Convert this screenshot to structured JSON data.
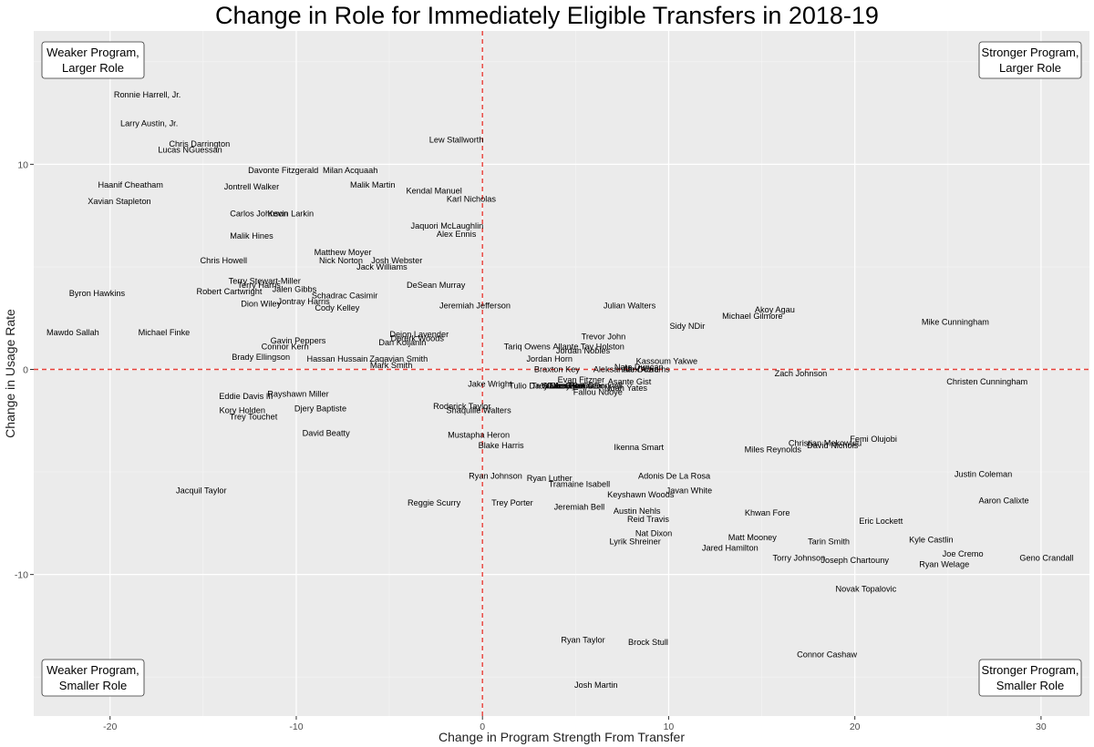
{
  "chart_data": {
    "type": "scatter",
    "title": "Change in Role for Immediately Eligible Transfers in 2018-19",
    "xlabel": "Change in Program Strength From Transfer",
    "ylabel": "Change in Usage Rate",
    "xlim": [
      -24.1,
      32.6
    ],
    "ylim": [
      -16.9,
      16.5
    ],
    "xticks": [
      -20,
      -10,
      0,
      10,
      20,
      30
    ],
    "yticks": [
      -10,
      0,
      10
    ],
    "grid": true,
    "reference_lines": {
      "x": 0,
      "y": 0,
      "style": "dashed",
      "color": "#e8403a"
    },
    "quadrant_labels": {
      "top_left": [
        "Weaker Program,",
        "Larger Role"
      ],
      "top_right": [
        "Stronger Program,",
        "Larger Role"
      ],
      "bottom_left": [
        "Weaker Program,",
        "Smaller Role"
      ],
      "bottom_right": [
        "Stronger Program,",
        "Smaller Role"
      ]
    },
    "points": [
      {
        "label": "Ronnie Harrell, Jr.",
        "x": -18.0,
        "y": 13.4
      },
      {
        "label": "Larry Austin, Jr.",
        "x": -17.9,
        "y": 12.0
      },
      {
        "label": "Chris Darrington",
        "x": -15.2,
        "y": 11.0
      },
      {
        "label": "Lucas NGuessan",
        "x": -15.7,
        "y": 10.7
      },
      {
        "label": "Lew Stallworth",
        "x": -1.4,
        "y": 11.2
      },
      {
        "label": "Davonte Fitzgerald",
        "x": -10.7,
        "y": 9.7
      },
      {
        "label": "Milan Acquaah",
        "x": -7.1,
        "y": 9.7
      },
      {
        "label": "Haanif Cheatham",
        "x": -18.9,
        "y": 9.0
      },
      {
        "label": "Jontrell Walker",
        "x": -12.4,
        "y": 8.9
      },
      {
        "label": "Malik Martin",
        "x": -5.9,
        "y": 9.0
      },
      {
        "label": "Kendal Manuel",
        "x": -2.6,
        "y": 8.7
      },
      {
        "label": "Karl Nicholas",
        "x": -0.6,
        "y": 8.3
      },
      {
        "label": "Xavian Stapleton",
        "x": -19.5,
        "y": 8.2
      },
      {
        "label": "Carlos Johnson",
        "x": -12.0,
        "y": 7.6
      },
      {
        "label": "Kevin Larkin",
        "x": -10.3,
        "y": 7.6
      },
      {
        "label": "Jaquori McLaughlin",
        "x": -1.9,
        "y": 7.0
      },
      {
        "label": "Alex Ennis",
        "x": -1.4,
        "y": 6.6
      },
      {
        "label": "Malik Hines",
        "x": -12.4,
        "y": 6.5
      },
      {
        "label": "Matthew Moyer",
        "x": -7.5,
        "y": 5.7
      },
      {
        "label": "Nick Norton",
        "x": -7.6,
        "y": 5.3
      },
      {
        "label": "Josh Webster",
        "x": -4.6,
        "y": 5.3
      },
      {
        "label": "Jack Williams",
        "x": -5.4,
        "y": 5.0
      },
      {
        "label": "Chris Howell",
        "x": -13.9,
        "y": 5.3
      },
      {
        "label": "DeSean Murray",
        "x": -2.5,
        "y": 4.1
      },
      {
        "label": "Terry Stewart-Miller",
        "x": -11.7,
        "y": 4.3
      },
      {
        "label": "Terry Harris",
        "x": -12.0,
        "y": 4.1
      },
      {
        "label": "Jalen Gibbs",
        "x": -10.1,
        "y": 3.9
      },
      {
        "label": "Robert Cartwright",
        "x": -13.6,
        "y": 3.8
      },
      {
        "label": "Byron Hawkins",
        "x": -20.7,
        "y": 3.7
      },
      {
        "label": "Schadrac Casimir",
        "x": -7.4,
        "y": 3.6
      },
      {
        "label": "Dion Wiley",
        "x": -11.9,
        "y": 3.2
      },
      {
        "label": "Jontray Harris",
        "x": -9.6,
        "y": 3.3
      },
      {
        "label": "Cody Kelley",
        "x": -7.8,
        "y": 3.0
      },
      {
        "label": "Jeremiah Jefferson",
        "x": -0.4,
        "y": 3.1
      },
      {
        "label": "Julian Walters",
        "x": 7.9,
        "y": 3.1
      },
      {
        "label": "Akoy Agau",
        "x": 15.7,
        "y": 2.9
      },
      {
        "label": "Michael Gilmore",
        "x": 14.5,
        "y": 2.6
      },
      {
        "label": "Mike Cunningham",
        "x": 25.4,
        "y": 2.3
      },
      {
        "label": "Sidy NDir",
        "x": 11.0,
        "y": 2.1
      },
      {
        "label": "Mawdo Sallah",
        "x": -22.0,
        "y": 1.8
      },
      {
        "label": "Michael Finke",
        "x": -17.1,
        "y": 1.8
      },
      {
        "label": "Deion Lavender",
        "x": -3.4,
        "y": 1.7
      },
      {
        "label": "Trevor John",
        "x": 6.5,
        "y": 1.6
      },
      {
        "label": "Dererk Woods",
        "x": -3.5,
        "y": 1.5
      },
      {
        "label": "Gavin Peppers",
        "x": -9.9,
        "y": 1.4
      },
      {
        "label": "Dan Koljanin",
        "x": -4.3,
        "y": 1.3
      },
      {
        "label": "Connor Kern",
        "x": -10.6,
        "y": 1.1
      },
      {
        "label": "Tariq Owens",
        "x": 2.4,
        "y": 1.1
      },
      {
        "label": "Allante Tay Holston",
        "x": 5.7,
        "y": 1.1
      },
      {
        "label": "Jordan Nobles",
        "x": 5.4,
        "y": 0.9
      },
      {
        "label": "Brady Ellingson",
        "x": -11.9,
        "y": 0.6
      },
      {
        "label": "Hassan Hussain",
        "x": -7.8,
        "y": 0.5
      },
      {
        "label": "Zaqavian Smith",
        "x": -4.5,
        "y": 0.5
      },
      {
        "label": "Jordan Horn",
        "x": 3.6,
        "y": 0.5
      },
      {
        "label": "Kassoum Yakwe",
        "x": 9.9,
        "y": 0.4
      },
      {
        "label": "Mark Smith",
        "x": -4.9,
        "y": 0.2
      },
      {
        "label": "Braxton Key",
        "x": 4.0,
        "y": -0.0
      },
      {
        "label": "Aleksandar Dozic",
        "x": 7.7,
        "y": 0.0
      },
      {
        "label": "Nate Duncan",
        "x": 8.4,
        "y": 0.1
      },
      {
        "label": "Alex Abrams",
        "x": 8.8,
        "y": 0.0
      },
      {
        "label": "Zach Johnson",
        "x": 17.1,
        "y": -0.2
      },
      {
        "label": "Christen Cunningham",
        "x": 27.1,
        "y": -0.6
      },
      {
        "label": "Evan Fitzner",
        "x": 5.3,
        "y": -0.5
      },
      {
        "label": "Asante Gist",
        "x": 7.9,
        "y": -0.6
      },
      {
        "label": "Jake Wright",
        "x": 0.4,
        "y": -0.7
      },
      {
        "label": "Tulio Da Silva",
        "x": 2.8,
        "y": -0.8
      },
      {
        "label": "Trey Dosunmu",
        "x": 4.1,
        "y": -0.8
      },
      {
        "label": "Walker Bell",
        "x": 4.3,
        "y": -0.8
      },
      {
        "label": "Casey Benson",
        "x": 4.9,
        "y": -0.8
      },
      {
        "label": "Jordan Oliver",
        "x": 5.2,
        "y": -0.8
      },
      {
        "label": "Ryan ODonnell",
        "x": 6.0,
        "y": -0.8
      },
      {
        "label": "Noah Yates",
        "x": 7.7,
        "y": -0.9
      },
      {
        "label": "Fallou Ndoye",
        "x": 6.2,
        "y": -1.1
      },
      {
        "label": "Eddie Davis III",
        "x": -12.7,
        "y": -1.3
      },
      {
        "label": "Rayshawn Miller",
        "x": -9.9,
        "y": -1.2
      },
      {
        "label": "Roderick Taylor",
        "x": -1.1,
        "y": -1.8
      },
      {
        "label": "Shaquille Walters",
        "x": -0.2,
        "y": -2.0
      },
      {
        "label": "Kory Holden",
        "x": -12.9,
        "y": -2.0
      },
      {
        "label": "Djery Baptiste",
        "x": -8.7,
        "y": -1.9
      },
      {
        "label": "Trey Touchet",
        "x": -12.3,
        "y": -2.3
      },
      {
        "label": "David Beatty",
        "x": -8.4,
        "y": -3.1
      },
      {
        "label": "Mustapha Heron",
        "x": -0.2,
        "y": -3.2
      },
      {
        "label": "Blake Harris",
        "x": 1.0,
        "y": -3.7
      },
      {
        "label": "Ikenna Smart",
        "x": 8.4,
        "y": -3.8
      },
      {
        "label": "Miles Reynolds",
        "x": 15.6,
        "y": -3.9
      },
      {
        "label": "Christian Mekowulu",
        "x": 18.4,
        "y": -3.6
      },
      {
        "label": "David Nichols",
        "x": 18.8,
        "y": -3.7
      },
      {
        "label": "Femi Olujobi",
        "x": 21.0,
        "y": -3.4
      },
      {
        "label": "Justin Coleman",
        "x": 26.9,
        "y": -5.1
      },
      {
        "label": "Ryan Johnson",
        "x": 0.7,
        "y": -5.2
      },
      {
        "label": "Ryan Luther",
        "x": 3.6,
        "y": -5.3
      },
      {
        "label": "Tramaine Isabell",
        "x": 5.2,
        "y": -5.6
      },
      {
        "label": "Adonis De La Rosa",
        "x": 10.3,
        "y": -5.2
      },
      {
        "label": "Javan White",
        "x": 11.1,
        "y": -5.9
      },
      {
        "label": "Keyshawn Woods",
        "x": 8.5,
        "y": -6.1
      },
      {
        "label": "Jacquil Taylor",
        "x": -15.1,
        "y": -5.9
      },
      {
        "label": "Reggie Scurry",
        "x": -2.6,
        "y": -6.5
      },
      {
        "label": "Trey Porter",
        "x": 1.6,
        "y": -6.5
      },
      {
        "label": "Jeremiah Bell",
        "x": 5.2,
        "y": -6.7
      },
      {
        "label": "Aaron Calixte",
        "x": 28.0,
        "y": -6.4
      },
      {
        "label": "Austin Nehls",
        "x": 8.3,
        "y": -6.9
      },
      {
        "label": "Khwan Fore",
        "x": 15.3,
        "y": -7.0
      },
      {
        "label": "Reid Travis",
        "x": 8.9,
        "y": -7.3
      },
      {
        "label": "Eric Lockett",
        "x": 21.4,
        "y": -7.4
      },
      {
        "label": "Nat Dixon",
        "x": 9.2,
        "y": -8.0
      },
      {
        "label": "Matt Mooney",
        "x": 14.5,
        "y": -8.2
      },
      {
        "label": "Lyrik Shreiner",
        "x": 8.2,
        "y": -8.4
      },
      {
        "label": "Tarin Smith",
        "x": 18.6,
        "y": -8.4
      },
      {
        "label": "Kyle Castlin",
        "x": 24.1,
        "y": -8.3
      },
      {
        "label": "Jared Hamilton",
        "x": 13.3,
        "y": -8.7
      },
      {
        "label": "Joe Cremo",
        "x": 25.8,
        "y": -9.0
      },
      {
        "label": "Geno Crandall",
        "x": 30.3,
        "y": -9.2
      },
      {
        "label": "Torry Johnson",
        "x": 17.0,
        "y": -9.2
      },
      {
        "label": "Joseph Chartouny",
        "x": 20.0,
        "y": -9.3
      },
      {
        "label": "Ryan Welage",
        "x": 24.8,
        "y": -9.5
      },
      {
        "label": "Novak Topalovic",
        "x": 20.6,
        "y": -10.7
      },
      {
        "label": "Ryan Taylor",
        "x": 5.4,
        "y": -13.2
      },
      {
        "label": "Brock Stull",
        "x": 8.9,
        "y": -13.3
      },
      {
        "label": "Connor Cashaw",
        "x": 18.5,
        "y": -13.9
      },
      {
        "label": "Josh Martin",
        "x": 6.1,
        "y": -15.4
      }
    ]
  }
}
